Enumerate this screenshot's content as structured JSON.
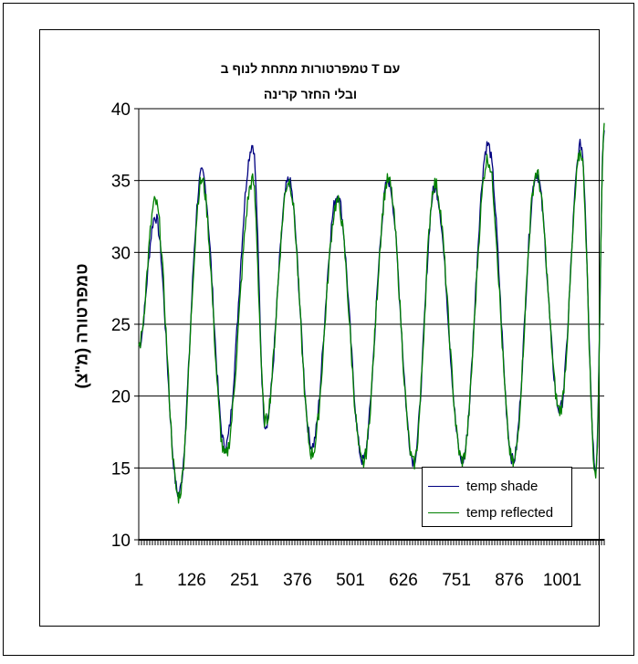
{
  "chart_data": {
    "type": "line",
    "title_line1": "טמפרטורות מתחת לנוף ב T עם",
    "title_line2": "ובלי החזר קרינה",
    "ylabel": "טמפרטורה (מ\"צ)",
    "xlabel": "",
    "ylim": [
      10,
      40
    ],
    "yticks": [
      10,
      15,
      20,
      25,
      30,
      35,
      40
    ],
    "x_tick_labels": [
      "1",
      "126",
      "251",
      "376",
      "501",
      "626",
      "751",
      "876",
      "1001"
    ],
    "x_tick_values": [
      1,
      126,
      251,
      376,
      501,
      626,
      751,
      876,
      1001
    ],
    "xlim": [
      1,
      1100
    ],
    "grid": "horizontal",
    "legend_position": "bottom-right",
    "series": [
      {
        "name": "temp shade",
        "color": "#000080",
        "cycles": [
          {
            "x": 1,
            "y": 23.5
          },
          {
            "x": 40,
            "y": 32.5
          },
          {
            "x": 95,
            "y": 13.2
          },
          {
            "x": 150,
            "y": 35.5
          },
          {
            "x": 205,
            "y": 16.5
          },
          {
            "x": 270,
            "y": 37.5
          },
          {
            "x": 300,
            "y": 18.0
          },
          {
            "x": 355,
            "y": 35.0
          },
          {
            "x": 410,
            "y": 16.5
          },
          {
            "x": 470,
            "y": 34.0
          },
          {
            "x": 530,
            "y": 15.5
          },
          {
            "x": 590,
            "y": 35.0
          },
          {
            "x": 650,
            "y": 15.5
          },
          {
            "x": 700,
            "y": 34.5
          },
          {
            "x": 765,
            "y": 15.5
          },
          {
            "x": 825,
            "y": 37.5
          },
          {
            "x": 885,
            "y": 15.5
          },
          {
            "x": 940,
            "y": 35.5
          },
          {
            "x": 995,
            "y": 19.0
          },
          {
            "x": 1045,
            "y": 37.5
          },
          {
            "x": 1080,
            "y": 15.0
          },
          {
            "x": 1100,
            "y": 38.5
          }
        ]
      },
      {
        "name": "temp reflected",
        "color": "#008000",
        "cycles": [
          {
            "x": 1,
            "y": 23.5
          },
          {
            "x": 40,
            "y": 33.5
          },
          {
            "x": 95,
            "y": 13.0
          },
          {
            "x": 150,
            "y": 35.0
          },
          {
            "x": 205,
            "y": 15.8
          },
          {
            "x": 270,
            "y": 35.0
          },
          {
            "x": 300,
            "y": 18.2
          },
          {
            "x": 355,
            "y": 35.0
          },
          {
            "x": 410,
            "y": 16.0
          },
          {
            "x": 470,
            "y": 33.5
          },
          {
            "x": 530,
            "y": 15.3
          },
          {
            "x": 590,
            "y": 35.0
          },
          {
            "x": 650,
            "y": 15.3
          },
          {
            "x": 700,
            "y": 34.8
          },
          {
            "x": 765,
            "y": 15.5
          },
          {
            "x": 825,
            "y": 36.5
          },
          {
            "x": 885,
            "y": 15.3
          },
          {
            "x": 940,
            "y": 35.5
          },
          {
            "x": 995,
            "y": 19.0
          },
          {
            "x": 1045,
            "y": 37.0
          },
          {
            "x": 1080,
            "y": 14.5
          },
          {
            "x": 1100,
            "y": 39.0
          }
        ]
      }
    ]
  }
}
